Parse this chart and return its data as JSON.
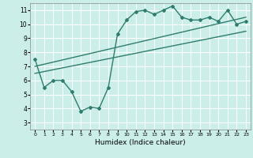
{
  "xlabel": "Humidex (Indice chaleur)",
  "bg_color": "#cceee8",
  "line_color": "#2e7d6e",
  "grid_color": "#ffffff",
  "xlim": [
    -0.5,
    23.5
  ],
  "ylim": [
    2.5,
    11.5
  ],
  "xticks": [
    0,
    1,
    2,
    3,
    4,
    5,
    6,
    7,
    8,
    9,
    10,
    11,
    12,
    13,
    14,
    15,
    16,
    17,
    18,
    19,
    20,
    21,
    22,
    23
  ],
  "yticks": [
    3,
    4,
    5,
    6,
    7,
    8,
    9,
    10,
    11
  ],
  "series1_x": [
    0,
    1,
    2,
    3,
    4,
    5,
    6,
    7,
    8,
    9,
    10,
    11,
    12,
    13,
    14,
    15,
    16,
    17,
    18,
    19,
    20,
    21,
    22,
    23
  ],
  "series1_y": [
    7.5,
    5.5,
    6.0,
    6.0,
    5.2,
    3.8,
    4.1,
    4.0,
    5.5,
    9.3,
    10.3,
    10.9,
    11.0,
    10.7,
    11.0,
    11.3,
    10.5,
    10.3,
    10.3,
    10.5,
    10.2,
    11.0,
    10.0,
    10.2
  ],
  "series2_x": [
    0,
    23
  ],
  "series2_y": [
    6.5,
    9.5
  ],
  "series3_x": [
    0,
    23
  ],
  "series3_y": [
    7.0,
    10.5
  ],
  "marker": "D",
  "marker_size": 2,
  "linewidth": 1.0
}
